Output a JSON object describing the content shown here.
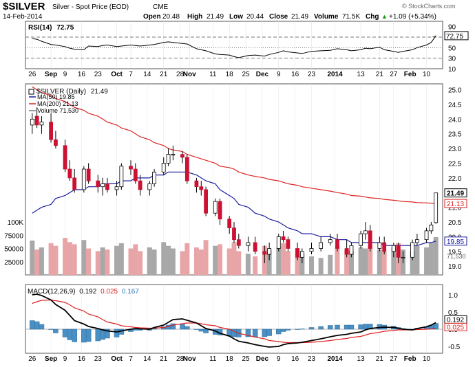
{
  "header": {
    "symbol": "$SILVER",
    "name": "Silver - Spot Price (EOD)",
    "exchange": "CME",
    "date": "14-Feb-2014",
    "open_label": "Open",
    "open": "20.48",
    "high_label": "High",
    "high": "21.49",
    "low_label": "Low",
    "low": "20.44",
    "close_label": "Close",
    "close": "21.49",
    "volume_label": "Volume",
    "volume": "71.5K",
    "chg_label": "Chg",
    "chg": "+1.09 (+5.34%)",
    "chg_arrow": "▲",
    "watermark": "© StockCharts.com"
  },
  "colors": {
    "up_candle": "#ffffff",
    "down_candle": "#cc1133",
    "ma50": "#1a1aa0",
    "ma200": "#dd2222",
    "volume_up": "#a8a8a8",
    "volume_down": "#e8a5a8",
    "rsi_fill": "#4a7a3a",
    "macd_hist": "#4a90c4",
    "macd_line": "#000000",
    "signal_line": "#dd2222"
  },
  "chart_data": [
    {
      "type": "line",
      "panel": "rsi",
      "title": "RSI(14)",
      "last_value": "72.75",
      "ylim": [
        10,
        100
      ],
      "yticks": [
        "90",
        "70",
        "50",
        "30",
        "10"
      ],
      "reference_lines": [
        70,
        50,
        30
      ],
      "dates": [
        "2013-08-26",
        "2013-08-28",
        "2013-08-30",
        "2013-09-03",
        "2013-09-05",
        "2013-09-09",
        "2013-09-11",
        "2013-09-13",
        "2013-09-17",
        "2013-09-19",
        "2013-09-23",
        "2013-09-25",
        "2013-09-27",
        "2013-10-01",
        "2013-10-03",
        "2013-10-07",
        "2013-10-09",
        "2013-10-11",
        "2013-10-15",
        "2013-10-17",
        "2013-10-21",
        "2013-10-23",
        "2013-10-25",
        "2013-10-29",
        "2013-10-31",
        "2013-11-04",
        "2013-11-06",
        "2013-11-08",
        "2013-11-12",
        "2013-11-14",
        "2013-11-18",
        "2013-11-20",
        "2013-11-22",
        "2013-11-26",
        "2013-11-29",
        "2013-12-03",
        "2013-12-05",
        "2013-12-09",
        "2013-12-11",
        "2013-12-13",
        "2013-12-17",
        "2013-12-19",
        "2013-12-23",
        "2013-12-27",
        "2013-12-31",
        "2014-01-03",
        "2014-01-07",
        "2014-01-09",
        "2014-01-13",
        "2014-01-15",
        "2014-01-17",
        "2014-01-21",
        "2014-01-23",
        "2014-01-27",
        "2014-01-29",
        "2014-01-31",
        "2014-02-04",
        "2014-02-06",
        "2014-02-10",
        "2014-02-12",
        "2014-02-14"
      ],
      "values": [
        67,
        66,
        62,
        56,
        55,
        52,
        49,
        47,
        46,
        53,
        52,
        54,
        55,
        52,
        53,
        55,
        54,
        53,
        55,
        56,
        60,
        61,
        60,
        58,
        57,
        48,
        46,
        44,
        38,
        37,
        36,
        33,
        31,
        35,
        36,
        34,
        37,
        41,
        44,
        42,
        40,
        39,
        43,
        44,
        45,
        48,
        46,
        44,
        46,
        49,
        48,
        51,
        46,
        43,
        41,
        43,
        46,
        50,
        55,
        60,
        72.75
      ]
    },
    {
      "type": "candlestick",
      "panel": "price",
      "title": "$SILVER (Daily)",
      "last_value": "21.49",
      "ylim": [
        18.7,
        25.2
      ],
      "yticks": [
        "25.0",
        "24.5",
        "24.0",
        "23.5",
        "23.0",
        "22.5",
        "22.0",
        "21.5",
        "21.0",
        "20.5",
        "20.0",
        "19.5",
        "19.0"
      ],
      "price_labels": {
        "close": "21.49",
        "ma200": "21.13",
        "ma50": "19.85"
      },
      "legend": [
        {
          "name": "MA(50)",
          "value": "19.85"
        },
        {
          "name": "MA(200)",
          "value": "21.13"
        },
        {
          "name": "Volume",
          "value": "71,530"
        }
      ],
      "volume_axis_ticks": [
        "100K",
        "75000",
        "50000",
        "25000"
      ],
      "volume_right_label": "71,530",
      "dates": [
        "2013-08-26",
        "2013-08-28",
        "2013-08-30",
        "2013-09-03",
        "2013-09-05",
        "2013-09-09",
        "2013-09-11",
        "2013-09-13",
        "2013-09-17",
        "2013-09-19",
        "2013-09-23",
        "2013-09-25",
        "2013-09-27",
        "2013-10-01",
        "2013-10-03",
        "2013-10-07",
        "2013-10-09",
        "2013-10-11",
        "2013-10-15",
        "2013-10-17",
        "2013-10-21",
        "2013-10-23",
        "2013-10-25",
        "2013-10-29",
        "2013-10-31",
        "2013-11-04",
        "2013-11-06",
        "2013-11-08",
        "2013-11-12",
        "2013-11-14",
        "2013-11-18",
        "2013-11-20",
        "2013-11-22",
        "2013-11-26",
        "2013-11-29",
        "2013-12-03",
        "2013-12-05",
        "2013-12-09",
        "2013-12-11",
        "2013-12-13",
        "2013-12-17",
        "2013-12-19",
        "2013-12-23",
        "2013-12-27",
        "2013-12-31",
        "2014-01-03",
        "2014-01-07",
        "2014-01-09",
        "2014-01-13",
        "2014-01-15",
        "2014-01-17",
        "2014-01-21",
        "2014-01-23",
        "2014-01-27",
        "2014-01-29",
        "2014-01-31",
        "2014-02-04",
        "2014-02-06",
        "2014-02-10",
        "2014-02-12",
        "2014-02-14"
      ],
      "open": [
        23.8,
        24.1,
        23.8,
        23.9,
        23.3,
        23.1,
        22.3,
        22.0,
        21.6,
        22.3,
        21.9,
        21.7,
        21.8,
        21.6,
        21.7,
        22.4,
        22.3,
        21.9,
        21.6,
        21.8,
        22.2,
        22.5,
        22.8,
        22.8,
        22.7,
        21.9,
        21.7,
        21.6,
        20.8,
        21.2,
        20.6,
        20.3,
        19.9,
        19.7,
        19.8,
        19.5,
        19.4,
        19.6,
        20.0,
        19.9,
        19.6,
        19.3,
        19.5,
        19.6,
        19.8,
        19.9,
        19.6,
        19.4,
        19.7,
        20.1,
        20.2,
        19.6,
        19.8,
        19.5,
        19.7,
        19.3,
        19.3,
        19.8,
        19.9,
        20.2,
        20.48
      ],
      "high": [
        24.2,
        24.4,
        24.1,
        24.2,
        23.6,
        23.3,
        22.6,
        22.3,
        22.4,
        22.5,
        22.1,
        22.0,
        22.0,
        21.9,
        22.5,
        22.6,
        22.5,
        22.1,
        21.9,
        22.3,
        22.7,
        23.0,
        23.1,
        22.9,
        22.8,
        22.0,
        21.9,
        21.7,
        21.3,
        21.3,
        20.7,
        20.5,
        20.1,
        20.0,
        20.0,
        19.7,
        19.8,
        20.1,
        20.2,
        20.0,
        19.8,
        19.6,
        19.8,
        20.0,
        20.1,
        20.1,
        19.9,
        19.8,
        20.2,
        20.5,
        20.4,
        20.0,
        20.0,
        19.8,
        19.8,
        19.5,
        19.9,
        20.1,
        20.3,
        20.5,
        21.49
      ],
      "low": [
        23.5,
        23.7,
        23.5,
        23.2,
        23.0,
        22.2,
        21.9,
        21.5,
        21.5,
        21.8,
        21.5,
        21.4,
        21.5,
        21.4,
        21.6,
        22.1,
        21.8,
        21.4,
        21.4,
        21.7,
        22.1,
        22.4,
        22.6,
        22.5,
        21.8,
        21.5,
        21.4,
        20.7,
        20.7,
        20.4,
        20.1,
        19.8,
        19.6,
        19.5,
        19.4,
        19.1,
        19.2,
        19.5,
        19.8,
        19.5,
        19.2,
        19.1,
        19.4,
        19.5,
        19.7,
        19.5,
        19.3,
        19.3,
        19.6,
        19.9,
        19.5,
        19.5,
        19.4,
        19.3,
        19.1,
        19.1,
        19.2,
        19.7,
        19.8,
        20.1,
        20.44
      ],
      "close": [
        24.0,
        23.8,
        23.9,
        23.3,
        23.1,
        22.3,
        22.0,
        21.6,
        22.3,
        21.9,
        21.7,
        21.8,
        21.6,
        21.7,
        22.4,
        22.3,
        21.9,
        21.6,
        21.8,
        22.2,
        22.5,
        22.8,
        22.8,
        22.7,
        21.9,
        21.7,
        21.6,
        20.8,
        21.2,
        20.6,
        20.3,
        19.9,
        19.7,
        19.8,
        19.5,
        19.4,
        19.6,
        20.0,
        19.9,
        19.6,
        19.3,
        19.5,
        19.6,
        19.8,
        19.9,
        19.6,
        19.4,
        19.7,
        20.1,
        20.2,
        19.6,
        19.8,
        19.5,
        19.7,
        19.3,
        19.3,
        19.8,
        19.9,
        20.2,
        20.4,
        21.49
      ],
      "ma50": [
        20.8,
        20.9,
        21.0,
        21.1,
        21.3,
        21.4,
        21.5,
        21.6,
        21.6,
        21.7,
        21.7,
        21.8,
        21.8,
        21.8,
        21.9,
        21.9,
        22.0,
        22.0,
        22.0,
        22.1,
        22.1,
        22.2,
        22.2,
        22.2,
        22.2,
        22.1,
        22.0,
        21.9,
        21.8,
        21.6,
        21.4,
        21.3,
        21.1,
        21.0,
        20.8,
        20.7,
        20.6,
        20.5,
        20.4,
        20.3,
        20.2,
        20.1,
        20.1,
        20.0,
        20.0,
        19.9,
        19.9,
        19.8,
        19.8,
        19.8,
        19.8,
        19.8,
        19.7,
        19.7,
        19.7,
        19.7,
        19.7,
        19.7,
        19.8,
        19.8,
        19.85
      ],
      "ma200": [
        25.1,
        25.0,
        24.9,
        24.8,
        24.7,
        24.6,
        24.5,
        24.4,
        24.3,
        24.2,
        24.1,
        24.0,
        23.9,
        23.8,
        23.7,
        23.6,
        23.5,
        23.4,
        23.3,
        23.2,
        23.1,
        23.0,
        22.95,
        22.9,
        22.8,
        22.7,
        22.65,
        22.6,
        22.5,
        22.4,
        22.35,
        22.3,
        22.2,
        22.1,
        22.05,
        22.0,
        21.95,
        21.9,
        21.85,
        21.8,
        21.75,
        21.7,
        21.65,
        21.6,
        21.55,
        21.5,
        21.45,
        21.4,
        21.38,
        21.35,
        21.32,
        21.3,
        21.27,
        21.24,
        21.22,
        21.2,
        21.18,
        21.16,
        21.15,
        21.14,
        21.13
      ],
      "volume": [
        65000,
        48000,
        52000,
        60000,
        55000,
        70000,
        62000,
        58000,
        66000,
        50000,
        45000,
        52000,
        48000,
        55000,
        60000,
        50000,
        58000,
        45000,
        52000,
        48000,
        62000,
        55000,
        50000,
        45000,
        60000,
        52000,
        48000,
        66000,
        55000,
        58000,
        50000,
        62000,
        45000,
        40000,
        35000,
        55000,
        48000,
        52000,
        60000,
        45000,
        50000,
        40000,
        35000,
        32000,
        38000,
        55000,
        48000,
        45000,
        52000,
        50000,
        55000,
        48000,
        45000,
        52000,
        60000,
        48000,
        45000,
        55000,
        52000,
        60000,
        71530
      ]
    },
    {
      "type": "line",
      "panel": "macd",
      "title": "MACD(12,26,9)",
      "values_label": [
        "0.192",
        "0.025",
        "0.167"
      ],
      "ylim": [
        -0.7,
        1.3
      ],
      "yticks": [
        "1.0",
        "0.5",
        "0.0",
        "-0.5"
      ],
      "right_labels": {
        "macd": "0.192",
        "signal": "0.025"
      },
      "dates": [
        "2013-08-26",
        "2013-08-28",
        "2013-08-30",
        "2013-09-03",
        "2013-09-05",
        "2013-09-09",
        "2013-09-11",
        "2013-09-13",
        "2013-09-17",
        "2013-09-19",
        "2013-09-23",
        "2013-09-25",
        "2013-09-27",
        "2013-10-01",
        "2013-10-03",
        "2013-10-07",
        "2013-10-09",
        "2013-10-11",
        "2013-10-15",
        "2013-10-17",
        "2013-10-21",
        "2013-10-23",
        "2013-10-25",
        "2013-10-29",
        "2013-10-31",
        "2013-11-04",
        "2013-11-06",
        "2013-11-08",
        "2013-11-12",
        "2013-11-14",
        "2013-11-18",
        "2013-11-20",
        "2013-11-22",
        "2013-11-26",
        "2013-11-29",
        "2013-12-03",
        "2013-12-05",
        "2013-12-09",
        "2013-12-11",
        "2013-12-13",
        "2013-12-17",
        "2013-12-19",
        "2013-12-23",
        "2013-12-27",
        "2013-12-31",
        "2014-01-03",
        "2014-01-07",
        "2014-01-09",
        "2014-01-13",
        "2014-01-15",
        "2014-01-17",
        "2014-01-21",
        "2014-01-23",
        "2014-01-27",
        "2014-01-29",
        "2014-01-31",
        "2014-02-04",
        "2014-02-06",
        "2014-02-10",
        "2014-02-12",
        "2014-02-14"
      ],
      "macd": [
        1.0,
        1.02,
        0.98,
        0.85,
        0.72,
        0.55,
        0.4,
        0.25,
        0.15,
        0.08,
        0.02,
        -0.02,
        -0.05,
        -0.08,
        -0.05,
        0.0,
        0.02,
        0.01,
        0.0,
        0.05,
        0.12,
        0.2,
        0.28,
        0.3,
        0.26,
        0.18,
        0.1,
        0.02,
        -0.05,
        -0.12,
        -0.2,
        -0.28,
        -0.35,
        -0.4,
        -0.45,
        -0.5,
        -0.52,
        -0.5,
        -0.45,
        -0.42,
        -0.4,
        -0.38,
        -0.33,
        -0.28,
        -0.22,
        -0.18,
        -0.15,
        -0.12,
        -0.08,
        -0.02,
        0.02,
        0.05,
        0.06,
        0.05,
        0.03,
        0.0,
        -0.02,
        0.02,
        0.07,
        0.12,
        0.192
      ],
      "signal": [
        0.75,
        0.8,
        0.84,
        0.85,
        0.83,
        0.78,
        0.71,
        0.62,
        0.53,
        0.44,
        0.36,
        0.28,
        0.21,
        0.15,
        0.1,
        0.07,
        0.05,
        0.04,
        0.03,
        0.03,
        0.05,
        0.08,
        0.12,
        0.16,
        0.18,
        0.18,
        0.16,
        0.13,
        0.1,
        0.05,
        0.0,
        -0.06,
        -0.12,
        -0.18,
        -0.23,
        -0.28,
        -0.33,
        -0.36,
        -0.38,
        -0.39,
        -0.39,
        -0.39,
        -0.38,
        -0.36,
        -0.33,
        -0.3,
        -0.27,
        -0.24,
        -0.21,
        -0.17,
        -0.13,
        -0.09,
        -0.06,
        -0.04,
        -0.02,
        -0.02,
        -0.02,
        -0.01,
        0.0,
        0.01,
        0.025
      ],
      "histogram": [
        0.25,
        0.22,
        0.14,
        0.0,
        -0.11,
        -0.23,
        -0.31,
        -0.37,
        -0.38,
        -0.36,
        -0.34,
        -0.3,
        -0.26,
        -0.23,
        -0.15,
        -0.07,
        -0.03,
        -0.03,
        -0.03,
        0.02,
        0.07,
        0.12,
        0.16,
        0.14,
        0.08,
        0.0,
        -0.06,
        -0.11,
        -0.15,
        -0.17,
        -0.2,
        -0.22,
        -0.23,
        -0.22,
        -0.22,
        -0.22,
        -0.19,
        -0.14,
        -0.07,
        -0.03,
        -0.01,
        0.01,
        0.05,
        0.08,
        0.11,
        0.12,
        0.12,
        0.12,
        0.13,
        0.15,
        0.15,
        0.14,
        0.12,
        0.09,
        0.05,
        0.02,
        0.0,
        0.03,
        0.07,
        0.11,
        0.167
      ]
    }
  ],
  "x_axis": {
    "labels": [
      {
        "date": "2013-08-26",
        "text": "26"
      },
      {
        "date": "2013-09-03",
        "text": "Sep",
        "bold": true
      },
      {
        "date": "2013-09-09",
        "text": "9"
      },
      {
        "date": "2013-09-16",
        "text": "16"
      },
      {
        "date": "2013-09-23",
        "text": "23"
      },
      {
        "date": "2013-10-01",
        "text": "Oct",
        "bold": true
      },
      {
        "date": "2013-10-07",
        "text": "7"
      },
      {
        "date": "2013-10-14",
        "text": "14"
      },
      {
        "date": "2013-10-21",
        "text": "21"
      },
      {
        "date": "2013-10-28",
        "text": "28"
      },
      {
        "date": "2013-11-01",
        "text": "Nov",
        "bold": true
      },
      {
        "date": "2013-11-11",
        "text": "11"
      },
      {
        "date": "2013-11-18",
        "text": "18"
      },
      {
        "date": "2013-11-25",
        "text": "25"
      },
      {
        "date": "2013-12-02",
        "text": "Dec",
        "bold": true
      },
      {
        "date": "2013-12-09",
        "text": "9"
      },
      {
        "date": "2013-12-16",
        "text": "16"
      },
      {
        "date": "2013-12-23",
        "text": "23"
      },
      {
        "date": "2014-01-02",
        "text": "2014",
        "bold": true
      },
      {
        "date": "2014-01-13",
        "text": "13"
      },
      {
        "date": "2014-01-21",
        "text": "21"
      },
      {
        "date": "2014-01-27",
        "text": "27"
      },
      {
        "date": "2014-02-03",
        "text": "Feb",
        "bold": true
      },
      {
        "date": "2014-02-10",
        "text": "10"
      }
    ]
  }
}
